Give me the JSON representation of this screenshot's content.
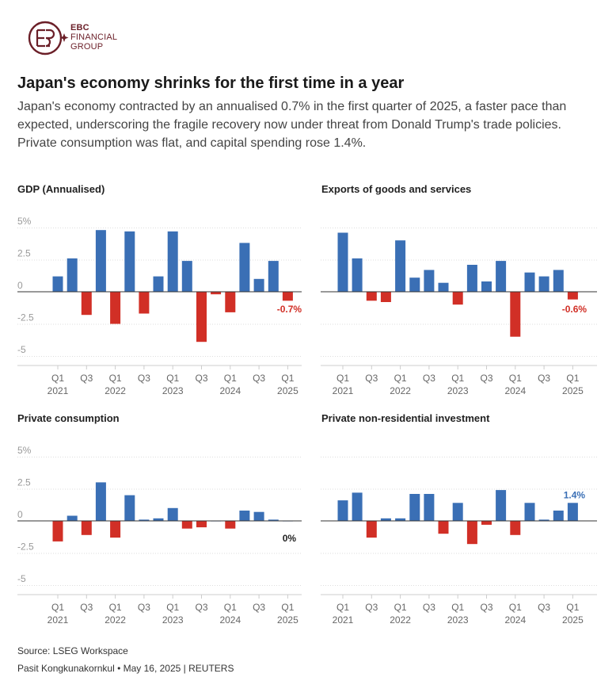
{
  "header": {
    "brand_line1": "EBC",
    "brand_line2": "FINANCIAL",
    "brand_line3": "GROUP",
    "title": "Japan's economy shrinks for the first time in a year",
    "subtitle": "Japan's economy contracted by an annualised 0.7% in the first quarter of 2025, a faster pace than expected, underscoring the fragile recovery now under threat from Donald Trump's trade policies. Private consumption was flat, and capital spending rose 1.4%."
  },
  "colors": {
    "positive": "#3a6fb5",
    "negative": "#d12f26",
    "axis": "#cccccc",
    "grid": "#dddddd",
    "tick": "#999999",
    "brand": "#6b1f28"
  },
  "chart_data": [
    {
      "type": "bar",
      "title": "GDP (Annualised)",
      "ylim": [
        -5,
        5
      ],
      "yticks": [
        "5%",
        "2.5",
        "0",
        "-2.5",
        "-5"
      ],
      "ytick_values": [
        5,
        2.5,
        0,
        -2.5,
        -5
      ],
      "categories": [
        "Q1 2021",
        "Q2 2021",
        "Q3 2021",
        "Q4 2021",
        "Q1 2022",
        "Q2 2022",
        "Q3 2022",
        "Q4 2022",
        "Q1 2023",
        "Q2 2023",
        "Q3 2023",
        "Q4 2023",
        "Q1 2024",
        "Q2 2024",
        "Q3 2024",
        "Q4 2024",
        "Q1 2025"
      ],
      "values": [
        1.2,
        2.6,
        -1.8,
        4.8,
        -2.5,
        4.7,
        -1.7,
        1.2,
        4.7,
        2.4,
        -3.9,
        -0.2,
        -1.6,
        3.8,
        1.0,
        2.4,
        -0.7
      ],
      "annotation": "-0.7%",
      "grid": false
    },
    {
      "type": "bar",
      "title": "Exports of goods and services",
      "ylim": [
        -5,
        5
      ],
      "yticks": [],
      "ytick_values": [
        5,
        2.5,
        0,
        -2.5,
        -5
      ],
      "categories": [
        "Q1 2021",
        "Q2 2021",
        "Q3 2021",
        "Q4 2021",
        "Q1 2022",
        "Q2 2022",
        "Q3 2022",
        "Q4 2022",
        "Q1 2023",
        "Q2 2023",
        "Q3 2023",
        "Q4 2023",
        "Q1 2024",
        "Q2 2024",
        "Q3 2024",
        "Q4 2024",
        "Q1 2025"
      ],
      "values": [
        4.6,
        2.6,
        -0.7,
        -0.8,
        4.0,
        1.1,
        1.7,
        0.7,
        -1.0,
        2.1,
        0.8,
        2.4,
        -3.5,
        1.5,
        1.2,
        1.7,
        -0.6
      ],
      "annotation": "-0.6%",
      "grid": false
    },
    {
      "type": "bar",
      "title": "Private consumption",
      "ylim": [
        -5,
        5
      ],
      "yticks": [
        "5%",
        "2.5",
        "0",
        "-2.5",
        "-5"
      ],
      "ytick_values": [
        5,
        2.5,
        0,
        -2.5,
        -5
      ],
      "categories": [
        "Q1 2021",
        "Q2 2021",
        "Q3 2021",
        "Q4 2021",
        "Q1 2022",
        "Q2 2022",
        "Q3 2022",
        "Q4 2022",
        "Q1 2023",
        "Q2 2023",
        "Q3 2023",
        "Q4 2023",
        "Q1 2024",
        "Q2 2024",
        "Q3 2024",
        "Q4 2024",
        "Q1 2025"
      ],
      "values": [
        -1.6,
        0.4,
        -1.1,
        3.0,
        -1.3,
        2.0,
        0.1,
        0.2,
        1.0,
        -0.6,
        -0.5,
        0.0,
        -0.6,
        0.8,
        0.7,
        0.1,
        0.0
      ],
      "annotation": "0%",
      "grid": false
    },
    {
      "type": "bar",
      "title": "Private non-residential investment",
      "ylim": [
        -5,
        5
      ],
      "yticks": [],
      "ytick_values": [
        5,
        2.5,
        0,
        -2.5,
        -5
      ],
      "categories": [
        "Q1 2021",
        "Q2 2021",
        "Q3 2021",
        "Q4 2021",
        "Q1 2022",
        "Q2 2022",
        "Q3 2022",
        "Q4 2022",
        "Q1 2023",
        "Q2 2023",
        "Q3 2023",
        "Q4 2023",
        "Q1 2024",
        "Q2 2024",
        "Q3 2024",
        "Q4 2024",
        "Q1 2025"
      ],
      "values": [
        1.6,
        2.2,
        -1.3,
        0.2,
        0.2,
        2.1,
        2.1,
        -1.0,
        1.4,
        -1.8,
        -0.3,
        2.4,
        -1.1,
        1.4,
        0.1,
        0.8,
        1.4
      ],
      "annotation": "1.4%",
      "grid": false
    }
  ],
  "xaxis_labels": [
    {
      "quarter": "Q1",
      "year": "2021",
      "index": 0
    },
    {
      "quarter": "Q3",
      "year": "",
      "index": 2
    },
    {
      "quarter": "Q1",
      "year": "2022",
      "index": 4
    },
    {
      "quarter": "Q3",
      "year": "",
      "index": 6
    },
    {
      "quarter": "Q1",
      "year": "2023",
      "index": 8
    },
    {
      "quarter": "Q3",
      "year": "",
      "index": 10
    },
    {
      "quarter": "Q1",
      "year": "2024",
      "index": 12
    },
    {
      "quarter": "Q3",
      "year": "",
      "index": 14
    },
    {
      "quarter": "Q1",
      "year": "2025",
      "index": 16
    }
  ],
  "footer": {
    "source": "Source: LSEG Workspace",
    "credit": "Pasit Kongkunakornkul • May 16, 2025 | REUTERS"
  }
}
